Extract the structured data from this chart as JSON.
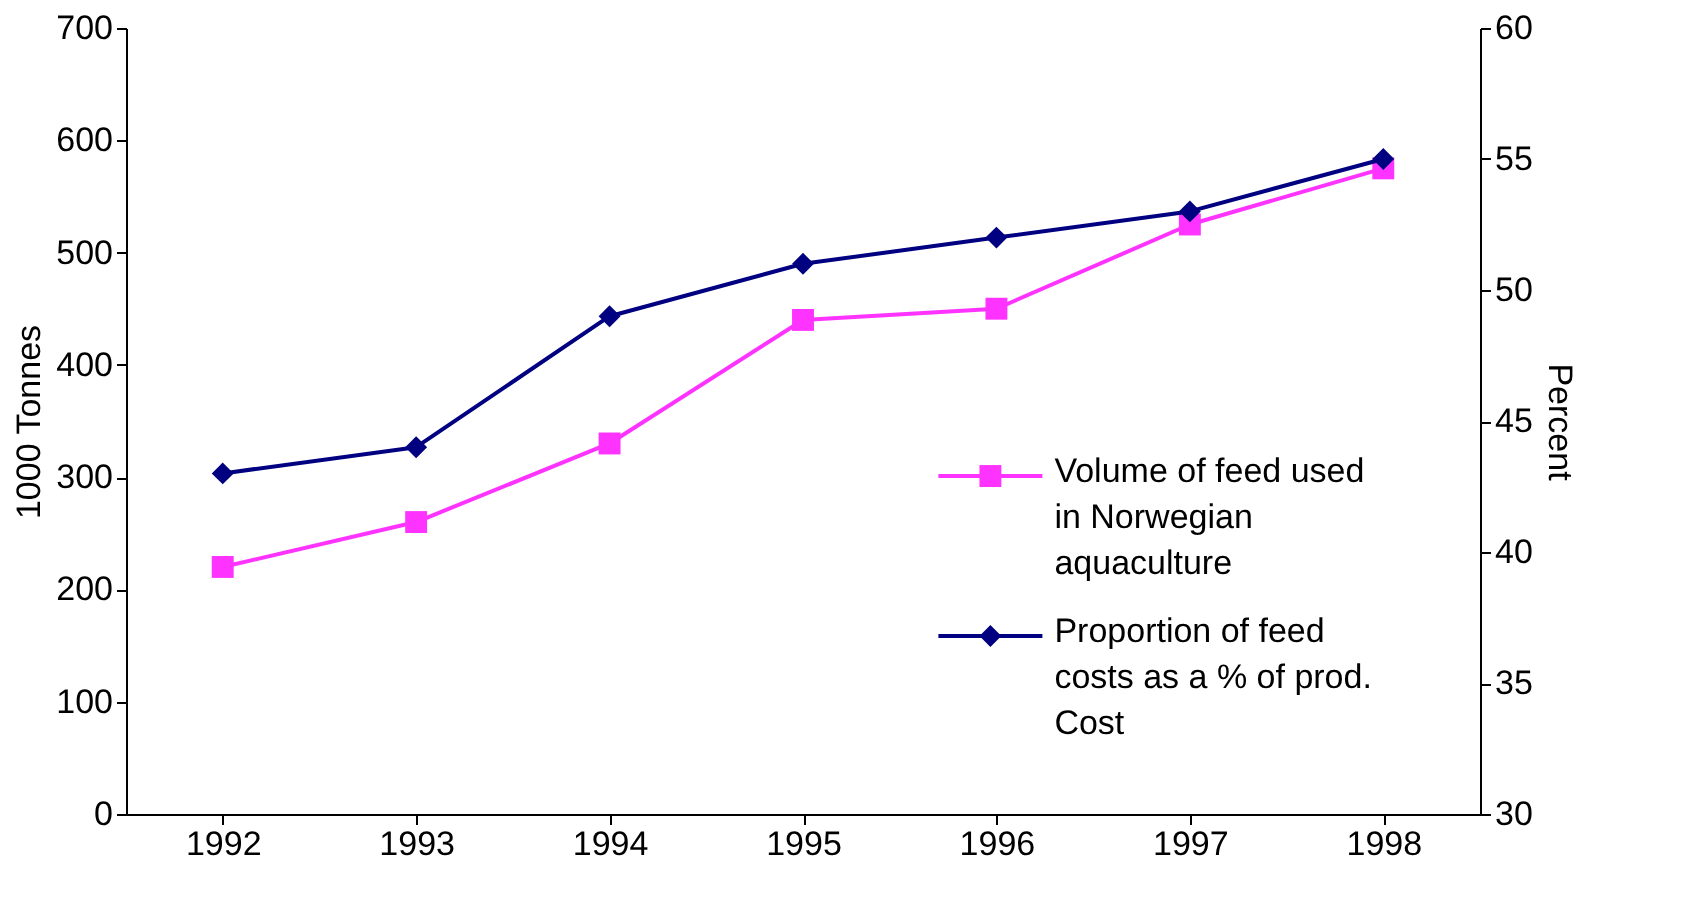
{
  "chart_data": {
    "type": "line",
    "categories": [
      "1992",
      "1993",
      "1994",
      "1995",
      "1996",
      "1997",
      "1998"
    ],
    "ylabel": "1000 Tonnes",
    "y2label": "Percent",
    "ylim": [
      0,
      700
    ],
    "yticks": [
      0,
      100,
      200,
      300,
      400,
      500,
      600,
      700
    ],
    "y2lim": [
      30,
      60
    ],
    "y2ticks": [
      30,
      35,
      40,
      45,
      50,
      55,
      60
    ],
    "grid": false,
    "legend": "bottom right",
    "series": [
      {
        "name": "Volume of feed used in Norwegian aquaculture",
        "color": "#ff33ff",
        "marker": "square",
        "values": [
          220,
          260,
          330,
          440,
          450,
          525,
          575
        ]
      },
      {
        "name": "Proportion of feed costs as a % of prod. Cost",
        "color": "#000080",
        "marker": "diamond",
        "axis": "y2",
        "values": [
          43,
          44,
          49,
          51,
          52,
          53,
          55
        ]
      }
    ]
  }
}
